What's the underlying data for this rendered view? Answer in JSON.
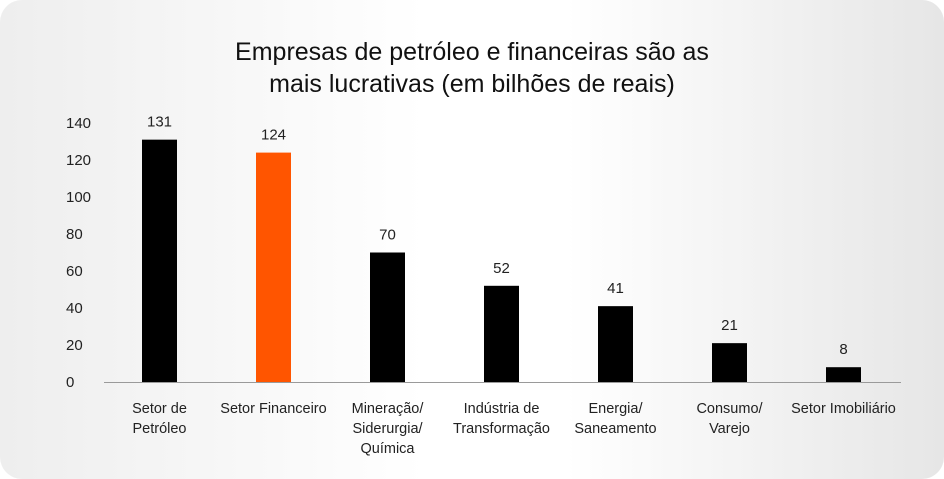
{
  "chart_data": {
    "type": "bar",
    "title_lines": [
      "Empresas de petróleo e financeiras são as",
      "mais lucrativas (em bilhões de reais)"
    ],
    "categories": [
      [
        "Setor de",
        "Petróleo"
      ],
      [
        "Setor Financeiro"
      ],
      [
        "Mineração/",
        "Siderurgia/",
        "Química"
      ],
      [
        "Indústria de",
        "Transformação"
      ],
      [
        "Energia/",
        "Saneamento"
      ],
      [
        "Consumo/",
        "Varejo"
      ],
      [
        "Setor Imobiliário"
      ]
    ],
    "values": [
      131,
      124,
      70,
      52,
      41,
      21,
      8
    ],
    "data_labels": [
      "131",
      "124",
      "70",
      "52",
      "41",
      "21",
      "8"
    ],
    "bar_colors": [
      "#000000",
      "#ff5500",
      "#000000",
      "#000000",
      "#000000",
      "#000000",
      "#000000"
    ],
    "ylim": [
      0,
      140
    ],
    "yticks": [
      0,
      20,
      40,
      60,
      80,
      100,
      120,
      140
    ],
    "grid": false,
    "legend": "none",
    "xlabel": "",
    "ylabel": ""
  }
}
